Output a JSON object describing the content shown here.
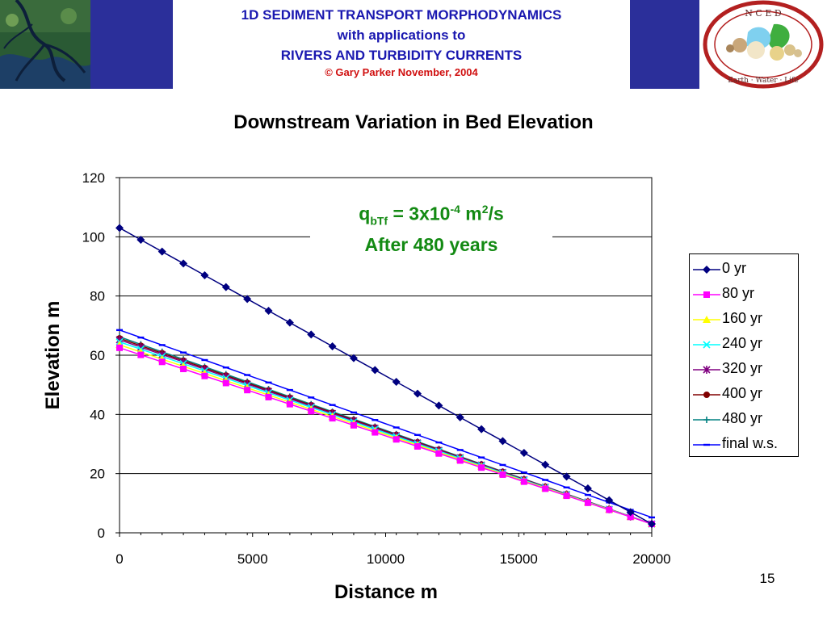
{
  "header": {
    "title_line_1": "1D SEDIMENT TRANSPORT MORPHODYNAMICS",
    "title_line_2": "with applications to",
    "title_line_3": "RIVERS AND TURBIDITY CURRENTS",
    "copyright": "© Gary Parker November, 2004",
    "logo_text_top": "N C E D",
    "logo_text_bottom": "Earth · Water · Life"
  },
  "annotation": {
    "q": "q",
    "sub": "bTf",
    "eq": " = 3x10",
    "exp": "-4",
    "unit": " m",
    "unit_exp": "2",
    "unit_tail": "/s",
    "line2": "After 480 years"
  },
  "page_number": "15",
  "colors": {
    "header_blue": "#2b2f9a",
    "title_blue": "#1a18b0",
    "copyright_red": "#d01010",
    "annotation_green": "#138a13",
    "plot_bg": "#ffffff",
    "grid": "#000000"
  },
  "chart_data": {
    "type": "line",
    "title": "Downstream Variation in Bed Elevation",
    "xlabel": "Distance m",
    "ylabel": "Elevation m",
    "xlim": [
      0,
      20000
    ],
    "ylim": [
      0,
      120
    ],
    "xticks": [
      0,
      5000,
      10000,
      15000,
      20000
    ],
    "yticks": [
      0,
      20,
      40,
      60,
      80,
      100,
      120
    ],
    "grid": "horizontal",
    "legend_position": "right",
    "x": [
      0,
      800,
      1600,
      2400,
      3200,
      4000,
      4800,
      5600,
      6400,
      7200,
      8000,
      8800,
      9600,
      10400,
      11200,
      12000,
      12800,
      13600,
      14400,
      15200,
      16000,
      16800,
      17600,
      18400,
      19200,
      20000
    ],
    "series": [
      {
        "name": "0 yr",
        "color": "#000080",
        "marker": "diamond",
        "y0": 103,
        "y1": 3
      },
      {
        "name": "80 yr",
        "color": "#ff00ff",
        "marker": "square",
        "y0": 62.5,
        "y1": 3
      },
      {
        "name": "160 yr",
        "color": "#ffff00",
        "marker": "triangle",
        "y0": 63.5,
        "y1": 3
      },
      {
        "name": "240 yr",
        "color": "#00ffff",
        "marker": "x",
        "y0": 64.5,
        "y1": 3
      },
      {
        "name": "320 yr",
        "color": "#800080",
        "marker": "star",
        "y0": 65.2,
        "y1": 3
      },
      {
        "name": "400 yr",
        "color": "#800000",
        "marker": "circle",
        "y0": 65.7,
        "y1": 3
      },
      {
        "name": "480 yr",
        "color": "#008080",
        "marker": "plus",
        "y0": 66.2,
        "y1": 3
      },
      {
        "name": "final w.s.",
        "color": "#0000ff",
        "marker": "dash",
        "y0": 68.5,
        "y1": 5.2
      }
    ]
  }
}
